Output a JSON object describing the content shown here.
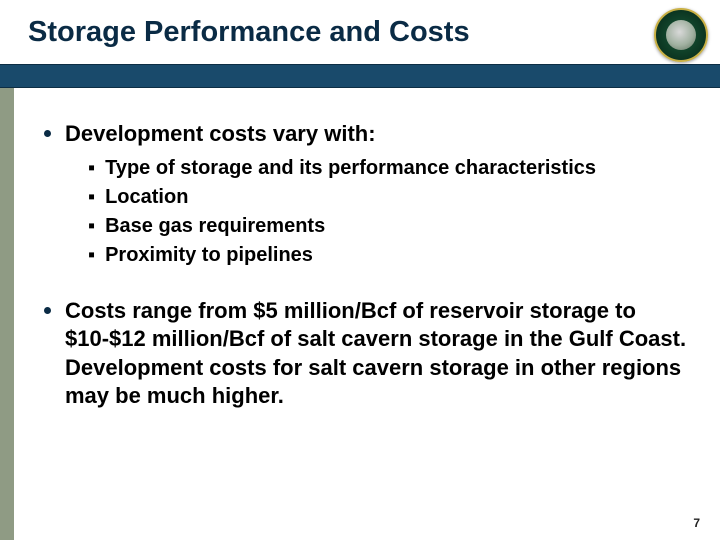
{
  "title": "Storage Performance and Costs",
  "title_fontsize": 29,
  "title_color": "#0a2b45",
  "band_color": "#194a6b",
  "sidebar_color": "#8f9b84",
  "main_fontsize": 22,
  "sub_fontsize": 20,
  "page_fontsize": 12,
  "bullets": {
    "b1": "Development costs vary with:",
    "b1_subs": {
      "s1": "Type of storage and its performance characteristics",
      "s2": "Location",
      "s3": "Base gas requirements",
      "s4": "Proximity to pipelines"
    },
    "b2": "Costs range from $5 million/Bcf of reservoir storage to $10-$12 million/Bcf of salt cavern storage in the Gulf Coast.  Development costs for salt cavern storage in other regions may be much higher."
  },
  "page_number": "7"
}
